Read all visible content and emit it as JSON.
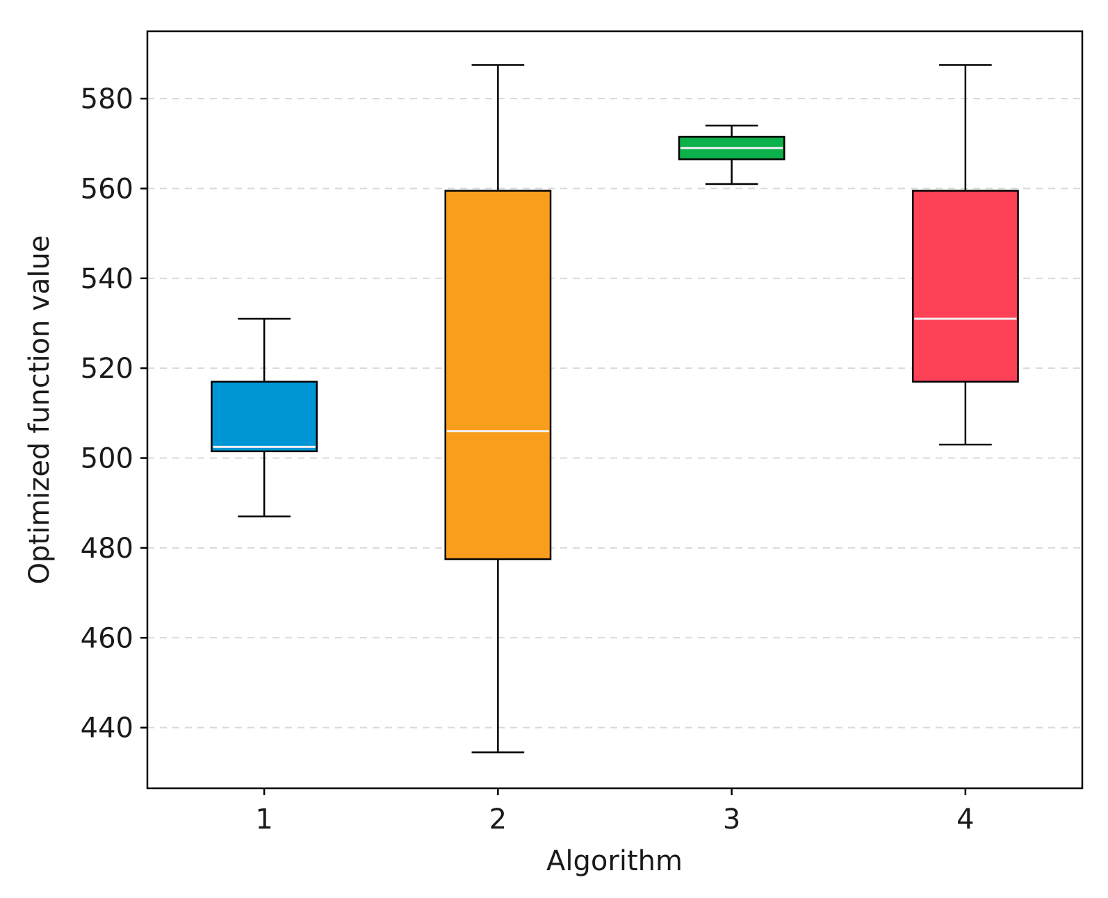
{
  "chart_data": {
    "type": "box",
    "title": "",
    "xlabel": "Algorithm",
    "ylabel": "Optimized function value",
    "ylim": [
      426.5,
      595
    ],
    "yticks": [
      440,
      460,
      480,
      500,
      520,
      540,
      560,
      580
    ],
    "grid": "horizontal-dashed",
    "categories": [
      "1",
      "2",
      "3",
      "4"
    ],
    "series": [
      {
        "name": "1",
        "whisker_low": 487,
        "q1": 501.5,
        "median": 502.5,
        "q3": 517,
        "whisker_high": 531,
        "color": "#0095d5"
      },
      {
        "name": "2",
        "whisker_low": 434.5,
        "q1": 477.5,
        "median": 506,
        "q3": 559.5,
        "whisker_high": 587.5,
        "color": "#f99d1c"
      },
      {
        "name": "3",
        "whisker_low": 561,
        "q1": 566.5,
        "median": 569,
        "q3": 571.5,
        "whisker_high": 574,
        "color": "#0db14b"
      },
      {
        "name": "4",
        "whisker_low": 503,
        "q1": 517,
        "median": 531,
        "q3": 559.5,
        "whisker_high": 587.5,
        "color": "#fd4157"
      }
    ],
    "median_line_color": "#f2f2f2"
  }
}
